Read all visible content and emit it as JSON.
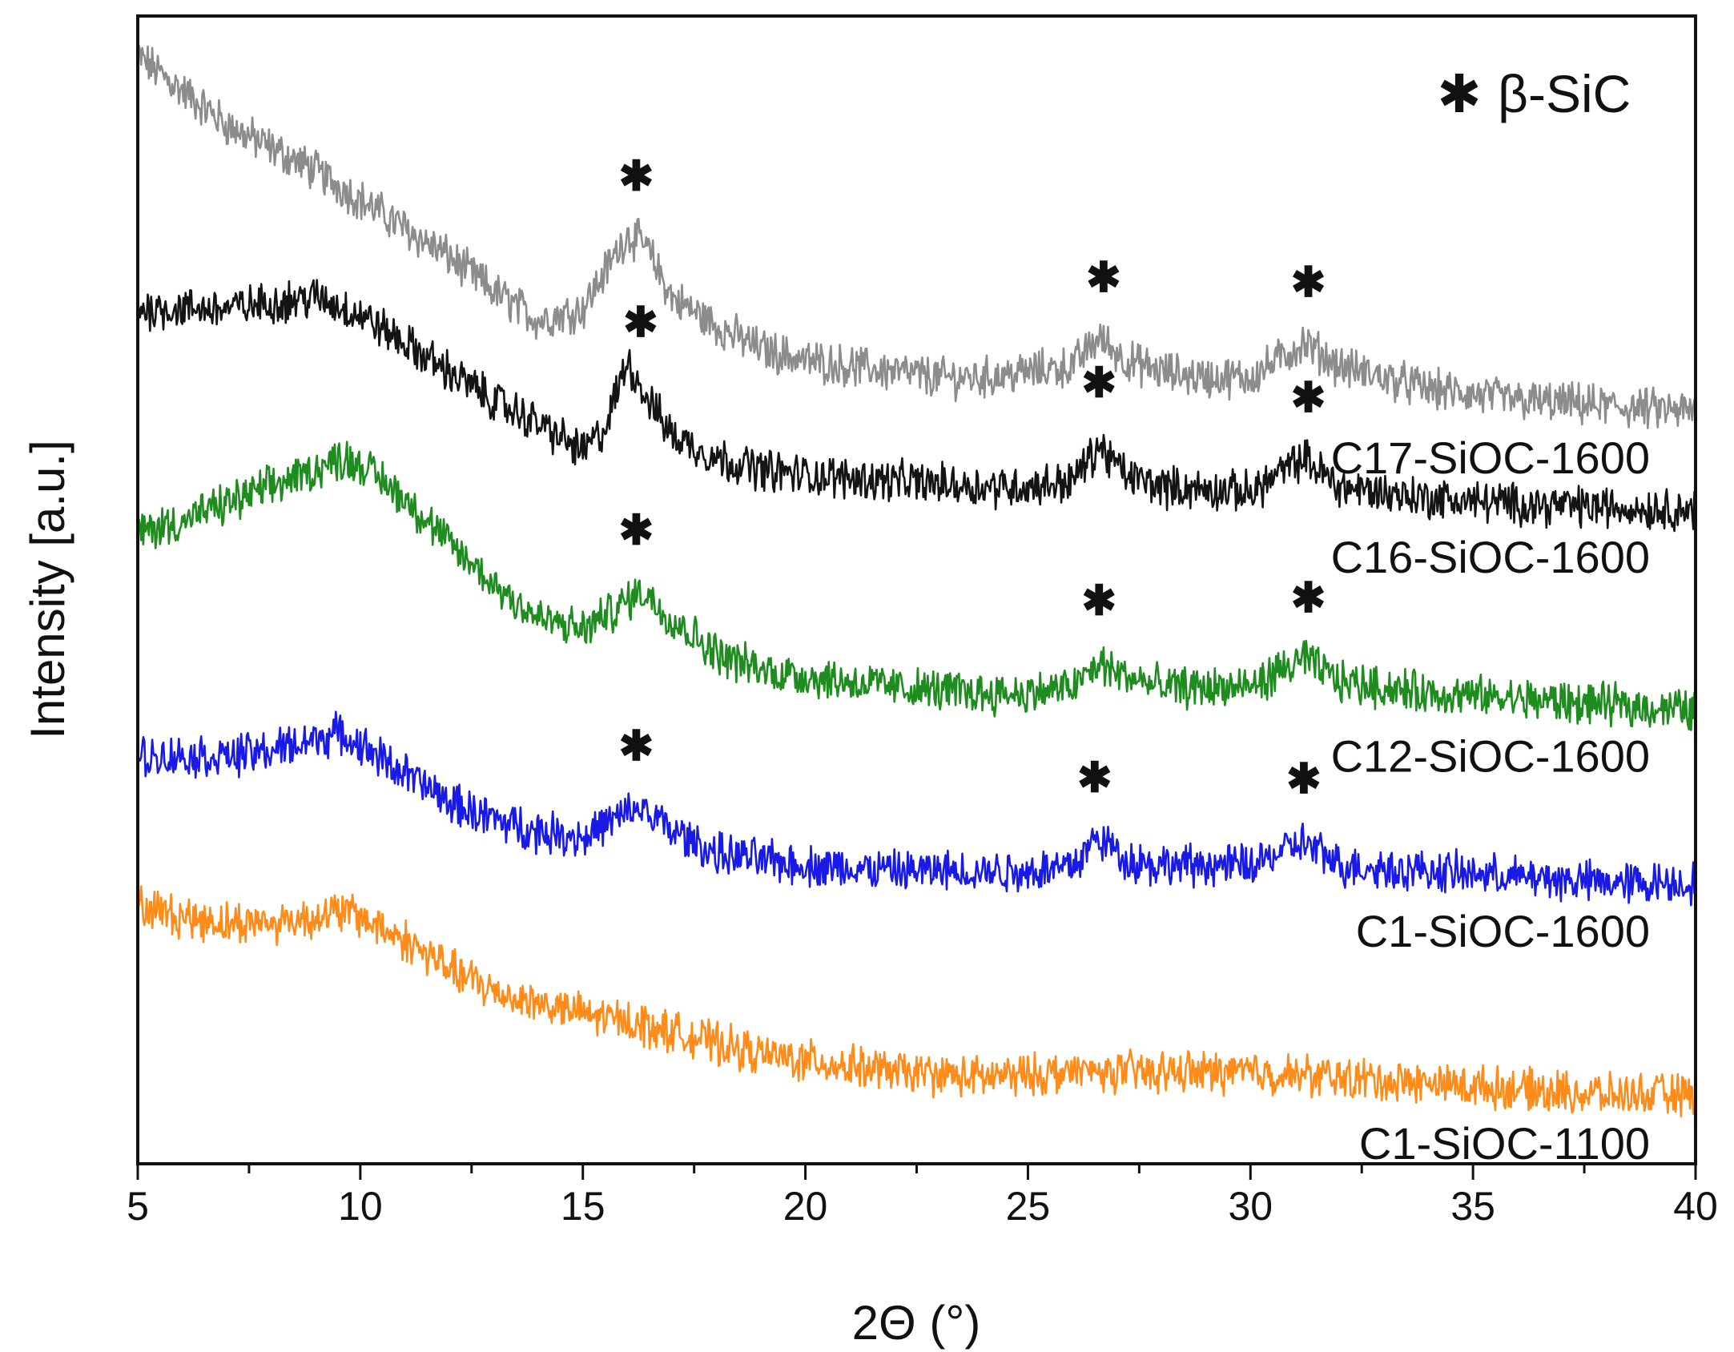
{
  "chart_data": {
    "type": "line",
    "title": "",
    "xlabel": "2Θ (°)",
    "ylabel": "Intensity [a.u.]",
    "xlim": [
      5,
      40
    ],
    "ylim": [
      0,
      1
    ],
    "xticks": [
      5,
      10,
      15,
      20,
      25,
      30,
      35,
      40
    ],
    "x_minor_step": 2.5,
    "y_ticks_shown": false,
    "grid": false,
    "legend": {
      "placement": "top-right",
      "symbol": "✱",
      "label": "β-SiC"
    },
    "peak_marker_symbol": "✱",
    "series": [
      {
        "name": "C17-SiOC-1600",
        "color": "#8c8c8c",
        "points": [
          [
            5,
            0.965
          ],
          [
            6,
            0.935
          ],
          [
            7,
            0.905
          ],
          [
            8,
            0.885
          ],
          [
            9,
            0.865
          ],
          [
            10,
            0.84
          ],
          [
            11,
            0.815
          ],
          [
            12,
            0.79
          ],
          [
            13,
            0.76
          ],
          [
            14,
            0.735
          ],
          [
            15,
            0.745
          ],
          [
            16,
            0.81
          ],
          [
            16.4,
            0.8
          ],
          [
            17,
            0.755
          ],
          [
            18,
            0.73
          ],
          [
            19,
            0.71
          ],
          [
            20,
            0.7
          ],
          [
            21,
            0.695
          ],
          [
            22,
            0.69
          ],
          [
            23,
            0.685
          ],
          [
            24,
            0.685
          ],
          [
            25,
            0.69
          ],
          [
            26,
            0.695
          ],
          [
            26.6,
            0.72
          ],
          [
            27.2,
            0.7
          ],
          [
            28,
            0.69
          ],
          [
            29,
            0.685
          ],
          [
            30,
            0.685
          ],
          [
            31.2,
            0.715
          ],
          [
            32,
            0.695
          ],
          [
            33,
            0.685
          ],
          [
            34,
            0.675
          ],
          [
            35,
            0.67
          ],
          [
            36,
            0.665
          ],
          [
            38,
            0.66
          ],
          [
            40,
            0.655
          ]
        ],
        "peaks": [
          16.2,
          26.7,
          31.3
        ]
      },
      {
        "name": "C16-SiOC-1600",
        "color": "#141414",
        "points": [
          [
            5,
            0.745
          ],
          [
            6,
            0.745
          ],
          [
            7,
            0.745
          ],
          [
            8,
            0.75
          ],
          [
            9,
            0.755
          ],
          [
            10,
            0.74
          ],
          [
            11,
            0.715
          ],
          [
            12,
            0.69
          ],
          [
            13,
            0.665
          ],
          [
            14,
            0.645
          ],
          [
            15,
            0.62
          ],
          [
            15.5,
            0.64
          ],
          [
            16,
            0.7
          ],
          [
            16.4,
            0.67
          ],
          [
            17,
            0.635
          ],
          [
            18,
            0.615
          ],
          [
            19,
            0.605
          ],
          [
            20,
            0.6
          ],
          [
            22,
            0.595
          ],
          [
            24,
            0.59
          ],
          [
            25,
            0.59
          ],
          [
            26,
            0.595
          ],
          [
            26.6,
            0.625
          ],
          [
            27.2,
            0.6
          ],
          [
            28,
            0.59
          ],
          [
            30,
            0.585
          ],
          [
            31.2,
            0.615
          ],
          [
            32,
            0.59
          ],
          [
            34,
            0.58
          ],
          [
            36,
            0.575
          ],
          [
            38,
            0.572
          ],
          [
            40,
            0.57
          ]
        ],
        "peaks": [
          16.3,
          26.6,
          31.3
        ]
      },
      {
        "name": "C12-SiOC-1600",
        "color": "#1f8c1f",
        "points": [
          [
            5,
            0.55
          ],
          [
            6,
            0.56
          ],
          [
            7,
            0.575
          ],
          [
            8,
            0.59
          ],
          [
            9,
            0.605
          ],
          [
            9.6,
            0.615
          ],
          [
            10,
            0.61
          ],
          [
            11,
            0.58
          ],
          [
            12,
            0.54
          ],
          [
            13,
            0.505
          ],
          [
            14,
            0.475
          ],
          [
            15,
            0.465
          ],
          [
            16,
            0.49
          ],
          [
            16.3,
            0.5
          ],
          [
            17,
            0.475
          ],
          [
            18,
            0.445
          ],
          [
            19,
            0.43
          ],
          [
            20,
            0.425
          ],
          [
            22,
            0.415
          ],
          [
            24,
            0.41
          ],
          [
            25,
            0.41
          ],
          [
            26,
            0.415
          ],
          [
            26.6,
            0.435
          ],
          [
            27.2,
            0.425
          ],
          [
            28,
            0.415
          ],
          [
            30,
            0.415
          ],
          [
            31.2,
            0.44
          ],
          [
            32,
            0.42
          ],
          [
            34,
            0.41
          ],
          [
            36,
            0.405
          ],
          [
            38,
            0.4
          ],
          [
            40,
            0.395
          ]
        ],
        "peaks": [
          16.2,
          26.6,
          31.3
        ]
      },
      {
        "name": "C1-SiOC-1600",
        "color": "#1a1ae6",
        "points": [
          [
            5,
            0.355
          ],
          [
            6,
            0.355
          ],
          [
            7,
            0.355
          ],
          [
            8,
            0.36
          ],
          [
            9,
            0.37
          ],
          [
            9.5,
            0.375
          ],
          [
            10,
            0.365
          ],
          [
            11,
            0.34
          ],
          [
            12,
            0.315
          ],
          [
            13,
            0.3
          ],
          [
            14,
            0.29
          ],
          [
            15,
            0.285
          ],
          [
            16,
            0.305
          ],
          [
            16.3,
            0.31
          ],
          [
            17,
            0.29
          ],
          [
            18,
            0.27
          ],
          [
            20,
            0.26
          ],
          [
            22,
            0.255
          ],
          [
            24,
            0.255
          ],
          [
            25,
            0.255
          ],
          [
            26,
            0.26
          ],
          [
            26.6,
            0.285
          ],
          [
            27.2,
            0.265
          ],
          [
            28,
            0.26
          ],
          [
            30,
            0.26
          ],
          [
            31.2,
            0.28
          ],
          [
            32,
            0.26
          ],
          [
            34,
            0.255
          ],
          [
            36,
            0.25
          ],
          [
            38,
            0.245
          ],
          [
            40,
            0.245
          ]
        ],
        "peaks": [
          16.2,
          26.5,
          31.2
        ]
      },
      {
        "name": "C1-SiOC-1100",
        "color": "#ff8c1a",
        "points": [
          [
            5,
            0.225
          ],
          [
            6,
            0.215
          ],
          [
            7,
            0.21
          ],
          [
            8,
            0.21
          ],
          [
            9,
            0.215
          ],
          [
            9.6,
            0.22
          ],
          [
            10,
            0.215
          ],
          [
            11,
            0.195
          ],
          [
            12,
            0.17
          ],
          [
            13,
            0.15
          ],
          [
            14,
            0.14
          ],
          [
            15,
            0.13
          ],
          [
            16,
            0.125
          ],
          [
            17,
            0.115
          ],
          [
            18,
            0.105
          ],
          [
            19,
            0.095
          ],
          [
            20,
            0.09
          ],
          [
            22,
            0.08
          ],
          [
            24,
            0.075
          ],
          [
            26,
            0.08
          ],
          [
            28,
            0.08
          ],
          [
            30,
            0.08
          ],
          [
            32,
            0.075
          ],
          [
            34,
            0.07
          ],
          [
            36,
            0.065
          ],
          [
            38,
            0.06
          ],
          [
            40,
            0.06
          ]
        ],
        "peaks": []
      }
    ]
  }
}
